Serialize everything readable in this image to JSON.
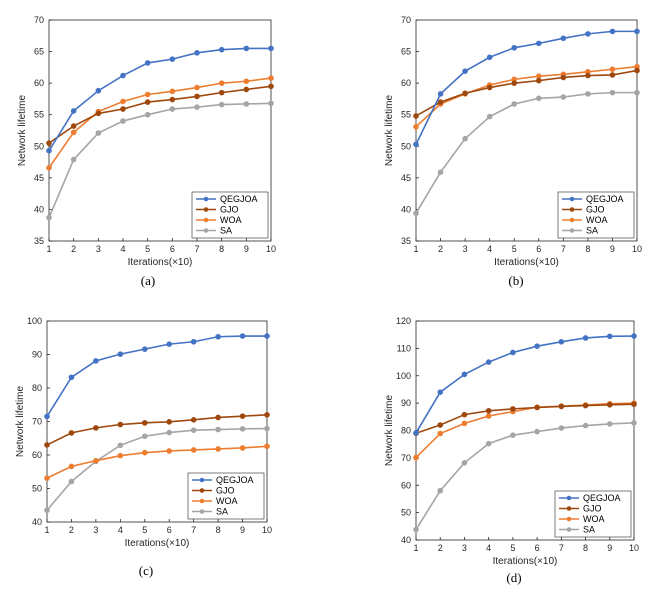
{
  "legend_names": [
    "QEGJOA",
    "GJO",
    "WOA",
    "SA"
  ],
  "series_colors": [
    "#4472C4",
    "#9E480E",
    "#ED7D31",
    "#A5A5A5"
  ],
  "chart_data": [
    {
      "type": "line",
      "caption": "(a)",
      "xlabel": "Iterations(×10)",
      "ylabel": "Network lifetime",
      "x": [
        1,
        2,
        3,
        4,
        5,
        6,
        7,
        8,
        9,
        10
      ],
      "xticks": [
        "1",
        "2",
        "3",
        "4",
        "5",
        "6",
        "7",
        "8",
        "9",
        "10"
      ],
      "yticks": [
        "35",
        "40",
        "45",
        "50",
        "55",
        "60",
        "65",
        "70"
      ],
      "ylim": [
        35,
        70
      ],
      "legend_position": "bottom-right",
      "series": [
        {
          "name": "QEGJOA",
          "values": [
            49.3,
            55.6,
            58.8,
            61.2,
            63.2,
            63.8,
            64.8,
            65.3,
            65.5,
            65.5
          ]
        },
        {
          "name": "GJO",
          "values": [
            50.5,
            53.2,
            55.2,
            55.9,
            57.0,
            57.4,
            57.9,
            58.5,
            59.0,
            59.5
          ]
        },
        {
          "name": "WOA",
          "values": [
            46.6,
            52.2,
            55.5,
            57.1,
            58.2,
            58.7,
            59.3,
            60.0,
            60.3,
            60.8
          ]
        },
        {
          "name": "SA",
          "values": [
            38.7,
            47.9,
            52.1,
            54.0,
            55.0,
            55.9,
            56.2,
            56.6,
            56.7,
            56.8
          ]
        }
      ]
    },
    {
      "type": "line",
      "caption": "(b)",
      "xlabel": "Iterations(×10)",
      "ylabel": "Network lifetime",
      "x": [
        1,
        2,
        3,
        4,
        5,
        6,
        7,
        8,
        9,
        10
      ],
      "xticks": [
        "1",
        "2",
        "3",
        "4",
        "5",
        "6",
        "7",
        "8",
        "9",
        "10"
      ],
      "yticks": [
        "35",
        "40",
        "45",
        "50",
        "55",
        "60",
        "65",
        "70"
      ],
      "ylim": [
        35,
        70
      ],
      "legend_position": "bottom-right",
      "series": [
        {
          "name": "QEGJOA",
          "values": [
            50.3,
            58.3,
            61.9,
            64.1,
            65.6,
            66.3,
            67.1,
            67.8,
            68.2,
            68.2
          ]
        },
        {
          "name": "GJO",
          "values": [
            54.8,
            57.0,
            58.4,
            59.3,
            60.0,
            60.4,
            60.9,
            61.2,
            61.3,
            62.0
          ]
        },
        {
          "name": "WOA",
          "values": [
            53.1,
            56.7,
            58.3,
            59.7,
            60.6,
            61.1,
            61.4,
            61.8,
            62.2,
            62.6
          ]
        },
        {
          "name": "SA",
          "values": [
            39.4,
            45.9,
            51.2,
            54.7,
            56.7,
            57.6,
            57.8,
            58.3,
            58.5,
            58.5
          ]
        }
      ]
    },
    {
      "type": "line",
      "caption": "(c)",
      "xlabel": "Iterations(×10)",
      "ylabel": "Network lifetime",
      "x": [
        1,
        2,
        3,
        4,
        5,
        6,
        7,
        8,
        9,
        10
      ],
      "xticks": [
        "1",
        "2",
        "3",
        "4",
        "5",
        "6",
        "7",
        "8",
        "9",
        "10"
      ],
      "yticks": [
        "40",
        "50",
        "60",
        "70",
        "80",
        "90",
        "100"
      ],
      "ylim": [
        40,
        100
      ],
      "legend_position": "bottom-right",
      "series": [
        {
          "name": "QEGJOA",
          "values": [
            71.5,
            83.2,
            88.1,
            90.1,
            91.6,
            93.1,
            93.8,
            95.3,
            95.5,
            95.5
          ]
        },
        {
          "name": "GJO",
          "values": [
            63.0,
            66.6,
            68.1,
            69.1,
            69.6,
            69.9,
            70.5,
            71.2,
            71.6,
            72.0
          ]
        },
        {
          "name": "WOA",
          "values": [
            53.1,
            56.6,
            58.3,
            59.8,
            60.7,
            61.2,
            61.5,
            61.8,
            62.1,
            62.6
          ]
        },
        {
          "name": "SA",
          "values": [
            43.5,
            52.1,
            58.1,
            62.9,
            65.6,
            66.7,
            67.4,
            67.6,
            67.8,
            67.9
          ]
        }
      ]
    },
    {
      "type": "line",
      "caption": "(d)",
      "xlabel": "Iterations(×10)",
      "ylabel": "Network lifetime",
      "x": [
        1,
        2,
        3,
        4,
        5,
        6,
        7,
        8,
        9,
        10
      ],
      "xticks": [
        "1",
        "2",
        "3",
        "4",
        "5",
        "6",
        "7",
        "8",
        "9",
        "10"
      ],
      "yticks": [
        "40",
        "50",
        "60",
        "70",
        "80",
        "90",
        "100",
        "110",
        "120"
      ],
      "ylim": [
        40,
        120
      ],
      "legend_position": "bottom-right",
      "series": [
        {
          "name": "QEGJOA",
          "values": [
            79.1,
            94.0,
            100.5,
            105.0,
            108.5,
            110.8,
            112.4,
            113.8,
            114.4,
            114.5
          ]
        },
        {
          "name": "GJO",
          "values": [
            79.0,
            82.0,
            85.8,
            87.2,
            87.9,
            88.4,
            88.8,
            89.1,
            89.4,
            89.6
          ]
        },
        {
          "name": "WOA",
          "values": [
            70.1,
            78.9,
            82.6,
            85.3,
            86.9,
            88.5,
            88.9,
            89.3,
            89.8,
            90.0
          ]
        },
        {
          "name": "SA",
          "values": [
            43.8,
            58.0,
            68.2,
            75.2,
            78.3,
            79.6,
            80.9,
            81.8,
            82.4,
            82.8
          ]
        }
      ]
    }
  ]
}
